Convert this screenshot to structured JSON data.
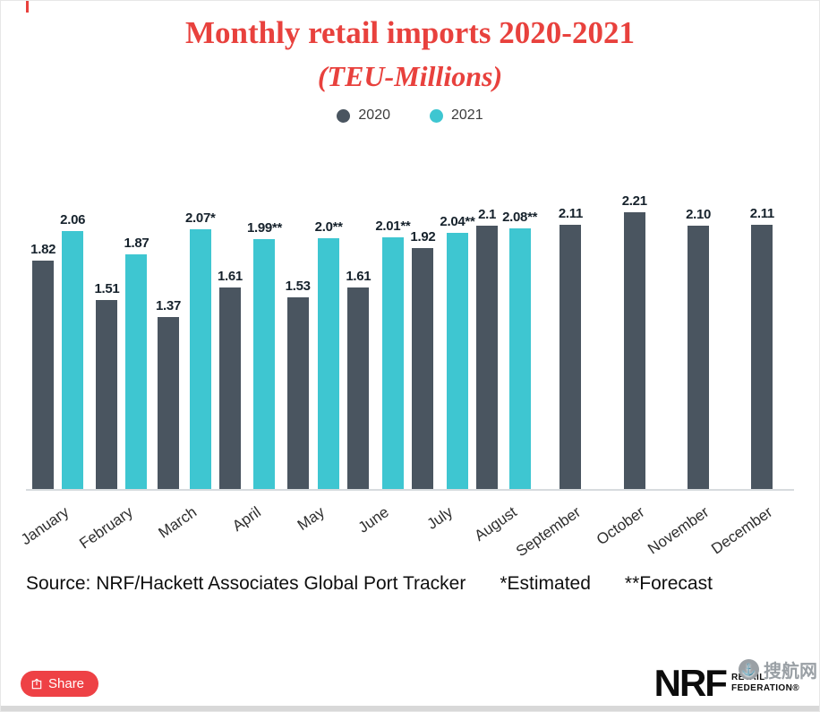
{
  "title": {
    "line1": "Monthly retail imports 2020-2021",
    "line2": "(TEU-Millions)"
  },
  "legend": [
    {
      "label": "2020",
      "color": "#4a5560"
    },
    {
      "label": "2021",
      "color": "#3ec6d1"
    }
  ],
  "chart_data": {
    "type": "bar",
    "title": "Monthly retail imports 2020-2021 (TEU-Millions)",
    "unit": "TEU-Millions",
    "categories": [
      "January",
      "February",
      "March",
      "April",
      "May",
      "June",
      "July",
      "August",
      "September",
      "October",
      "November",
      "December"
    ],
    "series": [
      {
        "name": "2020",
        "color": "#4a5560",
        "values": [
          1.82,
          1.51,
          1.37,
          1.61,
          1.53,
          1.61,
          1.92,
          2.1,
          2.11,
          2.21,
          2.1,
          2.11
        ],
        "labels": [
          "1.82",
          "1.51",
          "1.37",
          "1.61",
          "1.53",
          "1.61",
          "1.92",
          "2.1",
          "2.11",
          "2.21",
          "2.10",
          "2.11"
        ]
      },
      {
        "name": "2021",
        "color": "#3ec6d1",
        "values": [
          2.06,
          1.87,
          2.07,
          1.99,
          2.0,
          2.01,
          2.04,
          2.08,
          null,
          null,
          null,
          null
        ],
        "labels": [
          "2.06",
          "1.87",
          "2.07*",
          "1.99**",
          "2.0**",
          "2.01**",
          "2.04**",
          "2.08**"
        ]
      }
    ],
    "ylim": [
      0,
      2.4
    ],
    "grid": false,
    "legend_position": "top",
    "annotations": [
      "*Estimated",
      "**Forecast"
    ]
  },
  "footer": {
    "source": "Source: NRF/Hackett Associates Global Port Tracker",
    "estimated": "*Estimated",
    "forecast": "**Forecast"
  },
  "share": {
    "label": "Share"
  },
  "logo": {
    "nrf": "NRF",
    "retail": "RETAIL",
    "federation": "FEDERATION®"
  },
  "watermark": {
    "text": "搜航网"
  }
}
